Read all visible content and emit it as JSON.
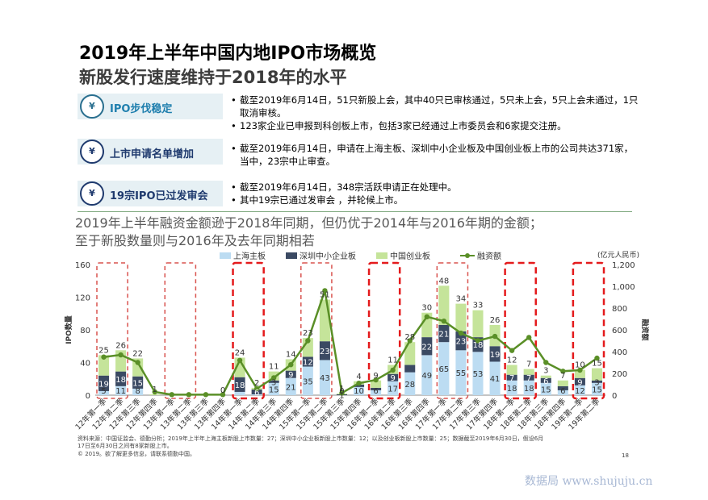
{
  "header": {
    "title": "2019年上半年中国内地IPO市场概览",
    "subtitle": "新股发行速度维持于2018年的水平"
  },
  "highlights": [
    {
      "icon": "yuan-icon",
      "label": "IPO步伐稳定",
      "bullets": [
        "截至2019年6月14日，51只新股上会，其中40只已审核通过，5只未上会，5只上会未通过，1只取消审核。",
        "123家企业已申报到科创板上市，包括3家已经通过上市委员会和6家提交注册。"
      ]
    },
    {
      "icon": "yuan-icon",
      "label": "上市申请名单增加",
      "bullets": [
        "截至2019年6月14日，申请在上海主板、深圳中小企业板及中国创业板上市的公司共达371家，当中，23宗中止审查。"
      ]
    },
    {
      "icon": "yuan-icon",
      "label": "19宗IPO已过发审会",
      "bullets": [
        "截至2019年6月14日，348宗活跃申请正在处理中。",
        "其中19宗已通过发审会 ，并轮候上市。"
      ]
    }
  ],
  "section_text": {
    "line1": "2019年上半年融资金额逊于2018年同期，但仍优于2014年与2016年期的金额；",
    "line2": "至于新股数量则与2016年及去年同期相若"
  },
  "colors": {
    "sh": "#bcdcf2",
    "sz": "#3b4a63",
    "cy": "#c5e49a",
    "line": "#5a8f27",
    "box_grey": "#d9534f",
    "box_red": "#e41a1c"
  },
  "chart_data": {
    "type": "bar",
    "left_axis_title": "IPO数量",
    "right_axis_title": "融资额",
    "unit_label": "(亿元人民币)",
    "ylim_left": [
      0,
      160
    ],
    "ylim_right": [
      0,
      1200
    ],
    "yticks_left": [
      "0",
      "40",
      "80",
      "120",
      "160"
    ],
    "yticks_right": [
      "0",
      "200",
      "400",
      "600",
      "800",
      "1,000",
      "1,200"
    ],
    "legend": [
      "上海主板",
      "深圳中小企业板",
      "中国创业板",
      "融资额"
    ],
    "categories": [
      "12年第一季",
      "12年第二季",
      "12年第三季",
      "12年第四季",
      "13年第一季",
      "13年第二季",
      "13年第三季",
      "13年第四季",
      "14年第一季",
      "14年第二季",
      "14年第三季",
      "14年第四季",
      "15年第一季",
      "15年第二季",
      "15年第三季",
      "15年第四季",
      "16年第一季",
      "16年第二季",
      "16年第三季",
      "16年第四季",
      "17年第一季",
      "17年第二季",
      "17年第三季",
      "17年第四季",
      "18年第一季",
      "18年第二季",
      "18年第三季",
      "18年第四季",
      "19年第一季",
      "19年第二季"
    ],
    "series": [
      {
        "name": "上海主板",
        "values": [
          5,
          11,
          8,
          0,
          0,
          0,
          0,
          0,
          4,
          1,
          15,
          21,
          35,
          43,
          0,
          10,
          6,
          17,
          28,
          49,
          65,
          55,
          53,
          41,
          18,
          18,
          15,
          6,
          12,
          15
        ]
      },
      {
        "name": "深圳中小企业板",
        "values": [
          19,
          18,
          15,
          0,
          0,
          0,
          0,
          0,
          18,
          6,
          3,
          9,
          12,
          23,
          1,
          3,
          3,
          9,
          9,
          22,
          21,
          23,
          18,
          19,
          7,
          7,
          6,
          5,
          9,
          3
        ]
      },
      {
        "name": "中国创业板",
        "values": [
          25,
          26,
          22,
          1,
          0,
          0,
          0,
          0,
          24,
          2,
          11,
          14,
          23,
          51,
          1,
          4,
          9,
          11,
          28,
          30,
          48,
          34,
          33,
          26,
          12,
          7,
          3,
          7,
          10,
          15
        ]
      },
      {
        "name": "融资额",
        "values": [
          350,
          370,
          300,
          30,
          5,
          5,
          5,
          5,
          320,
          60,
          160,
          280,
          500,
          960,
          20,
          110,
          140,
          230,
          500,
          720,
          680,
          570,
          500,
          540,
          410,
          530,
          300,
          220,
          230,
          340
        ]
      }
    ],
    "labels_sh": [
      "5",
      "11",
      "8",
      "",
      "",
      "",
      "",
      "",
      "",
      "",
      "15",
      "21",
      "35",
      "43",
      "0",
      "10",
      "6",
      "17",
      "28",
      "49",
      "65",
      "55",
      "53",
      "41",
      "18",
      "18",
      "15",
      "6",
      "12",
      "15"
    ],
    "labels_sz": [
      "19",
      "18",
      "15",
      "",
      "",
      "",
      "",
      "",
      "18",
      "6",
      "3",
      "9",
      "12",
      "23",
      "1",
      "",
      "",
      "9",
      "",
      "22",
      "21",
      "23",
      "18",
      "19",
      "7",
      "7",
      "6",
      "",
      "9",
      "3"
    ],
    "labels_cy": [
      "25",
      "26",
      "22",
      "1",
      "",
      "",
      "",
      "0",
      "24",
      "2",
      "11",
      "14",
      "23",
      "51",
      "1",
      "4",
      "9",
      "11",
      "28",
      "30",
      "48",
      "34",
      "33",
      "26",
      "12",
      "7",
      "3",
      "7",
      "10",
      "15"
    ],
    "highlight_boxes": [
      {
        "from": 0,
        "to": 1,
        "style": "grey"
      },
      {
        "from": 4,
        "to": 5,
        "style": "grey"
      },
      {
        "from": 8,
        "to": 9,
        "style": "red"
      },
      {
        "from": 12,
        "to": 13,
        "style": "grey"
      },
      {
        "from": 16,
        "to": 17,
        "style": "red"
      },
      {
        "from": 20,
        "to": 21,
        "style": "grey"
      },
      {
        "from": 24,
        "to": 25,
        "style": "red"
      },
      {
        "from": 28,
        "to": 29,
        "style": "red"
      }
    ]
  },
  "footer": {
    "line1": "资料来源：中国证监会、德勤分析；2019年上半年上海主板新股上市数量：27；深圳中小企业板新股上市数量：12；以及创业板新股上市数量：25；数据截至2019年6月30日，假设6月",
    "line2": "17日至6月30日之间有8家新股上市。",
    "line3": "© 2019。欲了解更多信息，请联系德勤中国。",
    "page": "18",
    "watermark": "数据局 www.shujuju.cn"
  }
}
